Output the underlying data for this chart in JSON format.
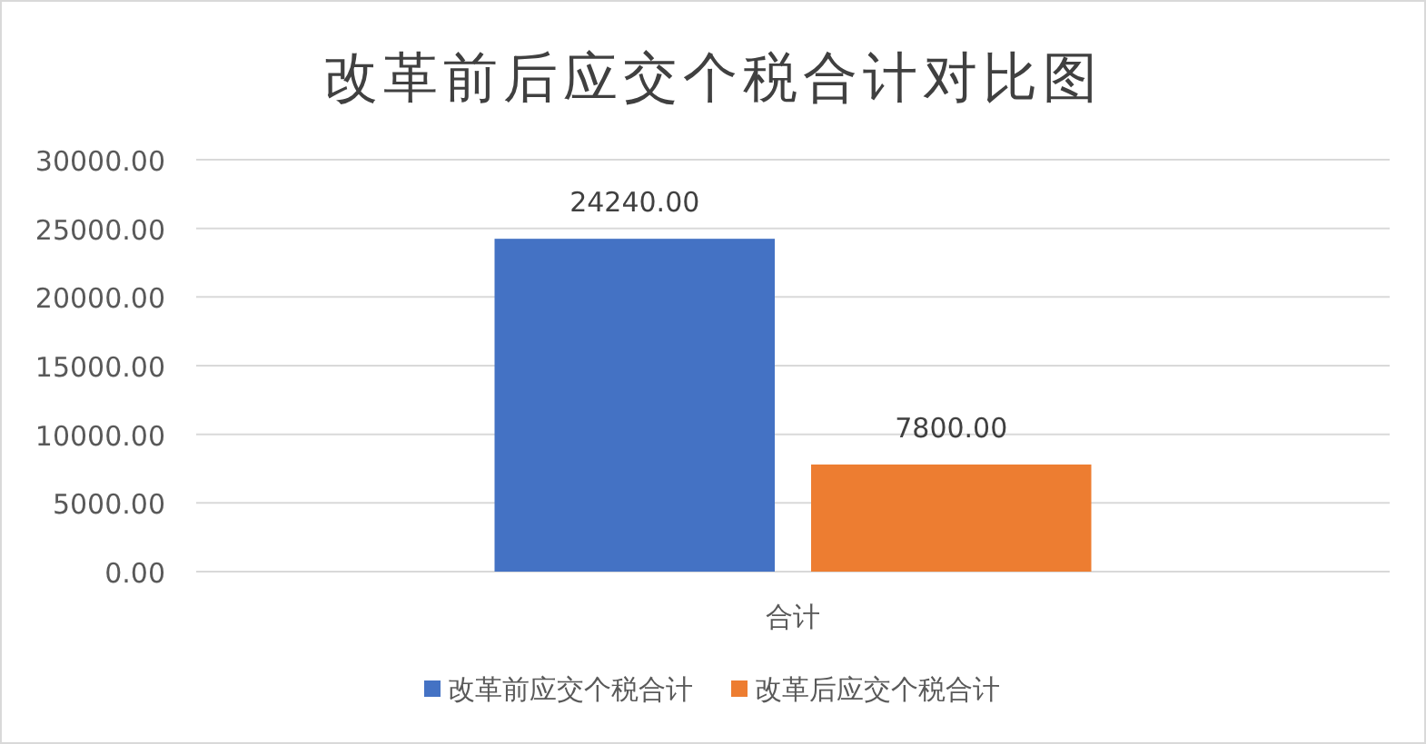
{
  "chart_data": {
    "type": "bar",
    "title": "改革前后应交个税合计对比图",
    "categories": [
      "合计"
    ],
    "series": [
      {
        "name": "改革前应交个税合计",
        "color": "#4472c4",
        "values": [
          24240
        ],
        "value_labels": [
          "24240.00"
        ]
      },
      {
        "name": "改革后应交个税合计",
        "color": "#ed7d31",
        "values": [
          7800
        ],
        "value_labels": [
          "7800.00"
        ]
      }
    ],
    "ylim": [
      0,
      30000
    ],
    "yticks": [
      {
        "value": 0,
        "label": "0.00"
      },
      {
        "value": 5000,
        "label": "5000.00"
      },
      {
        "value": 10000,
        "label": "10000.00"
      },
      {
        "value": 15000,
        "label": "15000.00"
      },
      {
        "value": 20000,
        "label": "20000.00"
      },
      {
        "value": 25000,
        "label": "25000.00"
      },
      {
        "value": 30000,
        "label": "30000.00"
      }
    ],
    "grid": "y",
    "legend": "bottom"
  }
}
